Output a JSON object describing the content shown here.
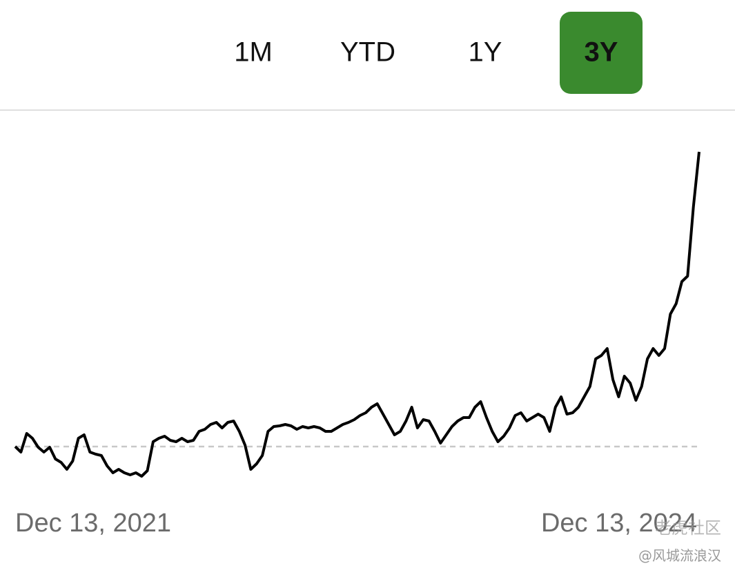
{
  "tabs": [
    "1M",
    "YTD",
    "1Y",
    "3Y"
  ],
  "selected_tab": 3,
  "selected_color": "#3a8a2e",
  "watermark": [
    "老虎社区",
    "@风城流浪汉"
  ],
  "chart_data": {
    "type": "line",
    "color": "#000000",
    "baseline": 100,
    "ylim": [
      82,
      212
    ],
    "categories": [
      "Dec 13, 2021",
      null,
      null,
      null,
      null,
      null,
      null,
      null,
      null,
      null,
      null,
      null,
      null,
      null,
      null,
      null,
      null,
      null,
      null,
      null,
      null,
      null,
      null,
      null,
      null,
      null,
      null,
      null,
      null,
      null,
      null,
      null,
      null,
      null,
      null,
      null,
      null,
      null,
      null,
      null,
      null,
      null,
      null,
      null,
      null,
      null,
      null,
      null,
      null,
      null,
      null,
      null,
      null,
      null,
      null,
      null,
      null,
      null,
      null,
      null,
      null,
      null,
      null,
      null,
      null,
      null,
      null,
      null,
      null,
      null,
      null,
      null,
      null,
      null,
      null,
      null,
      null,
      null,
      null,
      null,
      null,
      null,
      null,
      null,
      null,
      null,
      null,
      null,
      null,
      null,
      null,
      null,
      null,
      null,
      null,
      null,
      null,
      null,
      null,
      null,
      null,
      null,
      null,
      null,
      null,
      null,
      null,
      null,
      null,
      null,
      null,
      null,
      null,
      null,
      null,
      null,
      null,
      null,
      null,
      "Dec 13, 2024"
    ],
    "values": [
      100,
      98,
      104.75,
      103,
      99.75,
      98,
      99.75,
      95.5,
      94.25,
      91.75,
      94.75,
      103,
      104.25,
      98,
      97.25,
      96.75,
      93,
      90.5,
      91.75,
      90.5,
      89.75,
      90.5,
      89.25,
      91.25,
      101.75,
      103,
      103.75,
      102.25,
      101.75,
      103,
      101.75,
      102.25,
      105.5,
      106.25,
      108,
      108.75,
      106.75,
      108.75,
      109.25,
      105.5,
      100.5,
      91.75,
      93.75,
      96.75,
      105.5,
      107.25,
      107.5,
      108,
      107.5,
      106.25,
      107.25,
      106.75,
      107.25,
      106.75,
      105.5,
      105.5,
      106.75,
      108,
      108.75,
      109.75,
      111.25,
      112.25,
      114.25,
      115.5,
      111.75,
      108,
      104.25,
      105.5,
      109.25,
      114.25,
      106.75,
      109.75,
      109.25,
      105.5,
      101.25,
      104.25,
      107.25,
      109.25,
      110.5,
      110.5,
      114.25,
      116.25,
      110.5,
      105.5,
      101.75,
      103.75,
      106.75,
      111.25,
      112.25,
      109.25,
      110.5,
      111.75,
      110.5,
      105.5,
      114.25,
      118,
      111.75,
      112.25,
      114.25,
      118,
      121.75,
      131.75,
      133,
      135.5,
      124.25,
      118,
      125.5,
      123,
      116.75,
      121.75,
      131.75,
      135.5,
      133,
      135.5,
      148,
      151.75,
      159.75,
      161.75,
      186.75,
      206.75
    ]
  }
}
